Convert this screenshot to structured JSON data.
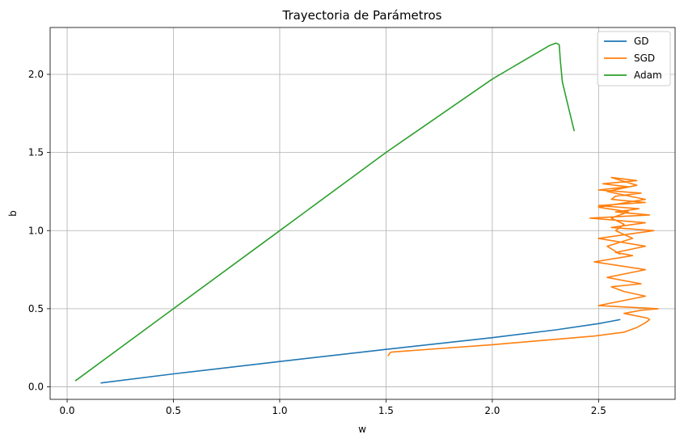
{
  "chart_data": {
    "type": "line",
    "title": "Trayectoria de Parámetros",
    "xlabel": "w",
    "ylabel": "b",
    "xlim": [
      -0.08,
      2.86
    ],
    "ylim": [
      -0.08,
      2.3
    ],
    "xticks": [
      {
        "value": 0.0,
        "label": "0.0"
      },
      {
        "value": 0.5,
        "label": "0.5"
      },
      {
        "value": 1.0,
        "label": "1.0"
      },
      {
        "value": 1.5,
        "label": "1.5"
      },
      {
        "value": 2.0,
        "label": "2.0"
      },
      {
        "value": 2.5,
        "label": "2.5"
      }
    ],
    "yticks": [
      {
        "value": 0.0,
        "label": "0.0"
      },
      {
        "value": 0.5,
        "label": "0.5"
      },
      {
        "value": 1.0,
        "label": "1.0"
      },
      {
        "value": 1.5,
        "label": "1.5"
      },
      {
        "value": 2.0,
        "label": "2.0"
      }
    ],
    "grid": true,
    "legend_position": "top-right",
    "series": [
      {
        "name": "GD",
        "color": "#1f77b4",
        "x": [
          0.16,
          0.5,
          1.0,
          1.5,
          2.0,
          2.3,
          2.5,
          2.56,
          2.6
        ],
        "y": [
          0.025,
          0.083,
          0.162,
          0.24,
          0.315,
          0.365,
          0.405,
          0.42,
          0.43
        ]
      },
      {
        "name": "SGD",
        "color": "#ff7f0e",
        "x": [
          1.51,
          1.52,
          1.53,
          2.0,
          2.48,
          2.62,
          2.68,
          2.72,
          2.74,
          2.73,
          2.62,
          2.7,
          2.78,
          2.5,
          2.72,
          2.62,
          2.56,
          2.7,
          2.54,
          2.72,
          2.48,
          2.66,
          2.58,
          2.72,
          2.5,
          2.76,
          2.56,
          2.72,
          2.46,
          2.74,
          2.58,
          2.69,
          2.5,
          2.72,
          2.56,
          2.58,
          2.7,
          2.5,
          2.64,
          2.52,
          2.68,
          2.56,
          2.68,
          2.54,
          2.72,
          2.5,
          2.64,
          2.56,
          2.62,
          2.58,
          2.66,
          2.54,
          2.6
        ],
        "y": [
          0.2,
          0.22,
          0.223,
          0.27,
          0.325,
          0.35,
          0.38,
          0.41,
          0.43,
          0.44,
          0.47,
          0.49,
          0.5,
          0.52,
          0.58,
          0.61,
          0.64,
          0.66,
          0.7,
          0.75,
          0.8,
          0.84,
          0.86,
          0.9,
          0.95,
          1.0,
          1.02,
          1.05,
          1.08,
          1.1,
          1.12,
          1.14,
          1.16,
          1.18,
          1.2,
          1.22,
          1.24,
          1.26,
          1.28,
          1.3,
          1.32,
          1.34,
          1.29,
          1.25,
          1.2,
          1.15,
          1.12,
          1.08,
          1.04,
          1.0,
          0.95,
          0.9,
          0.85
        ]
      },
      {
        "name": "Adam",
        "color": "#2ca02c",
        "x": [
          0.04,
          0.5,
          1.0,
          1.5,
          2.0,
          2.2,
          2.27,
          2.3,
          2.315,
          2.32,
          2.33,
          2.36,
          2.385
        ],
        "y": [
          0.04,
          0.5,
          1.0,
          1.5,
          1.97,
          2.13,
          2.185,
          2.2,
          2.19,
          2.09,
          1.95,
          1.78,
          1.64
        ]
      }
    ]
  }
}
